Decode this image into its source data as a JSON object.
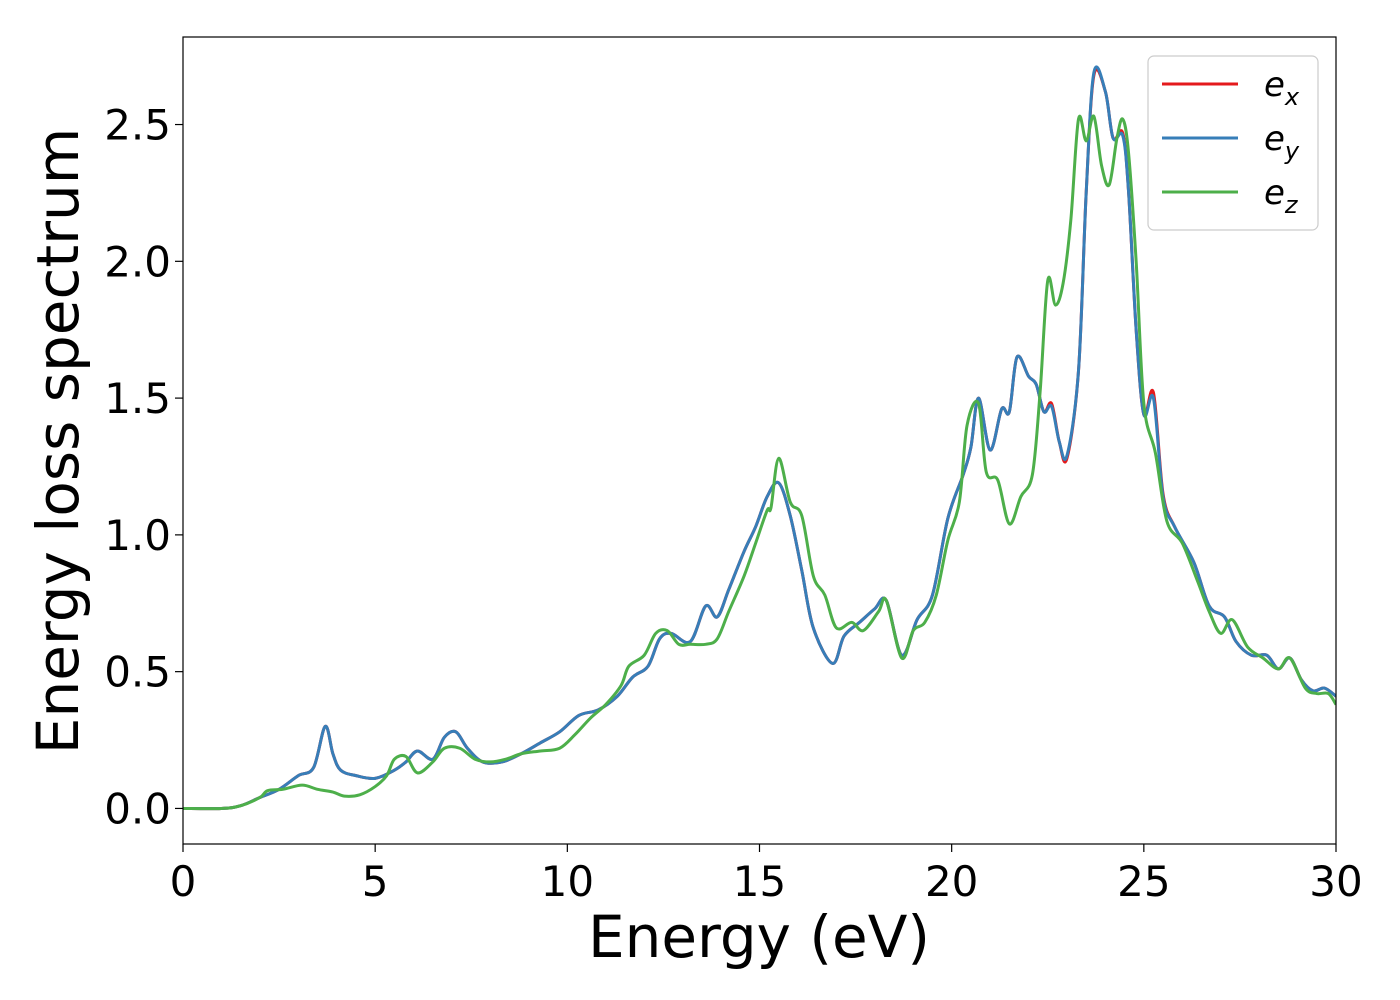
{
  "chart_data": {
    "type": "line",
    "title": "",
    "xlabel": "Energy (eV)",
    "ylabel": "Energy loss spectrum",
    "xlim": [
      0,
      30
    ],
    "ylim": [
      -0.13,
      2.82
    ],
    "xticks": [
      0,
      5,
      10,
      15,
      20,
      25,
      30
    ],
    "xtick_labels": [
      "0",
      "5",
      "10",
      "15",
      "20",
      "25",
      "30"
    ],
    "yticks": [
      0.0,
      0.5,
      1.0,
      1.5,
      2.0,
      2.5
    ],
    "ytick_labels": [
      "0.0",
      "0.5",
      "1.0",
      "1.5",
      "2.0",
      "2.5"
    ],
    "grid": false,
    "legend_position": "top-right",
    "series": [
      {
        "name": "e_x",
        "legend_main": "e",
        "legend_sub": "x",
        "color": "#e41a1c",
        "points": [
          [
            0,
            0
          ],
          [
            1,
            0
          ],
          [
            1.5,
            0.01
          ],
          [
            2,
            0.04
          ],
          [
            2.5,
            0.07
          ],
          [
            3,
            0.12
          ],
          [
            3.4,
            0.15
          ],
          [
            3.7,
            0.3
          ],
          [
            3.9,
            0.2
          ],
          [
            4.1,
            0.14
          ],
          [
            4.5,
            0.12
          ],
          [
            5,
            0.11
          ],
          [
            5.5,
            0.14
          ],
          [
            5.8,
            0.17
          ],
          [
            6.1,
            0.21
          ],
          [
            6.5,
            0.18
          ],
          [
            6.8,
            0.26
          ],
          [
            7.1,
            0.28
          ],
          [
            7.4,
            0.22
          ],
          [
            7.8,
            0.17
          ],
          [
            8.3,
            0.17
          ],
          [
            8.8,
            0.2
          ],
          [
            9.3,
            0.24
          ],
          [
            9.8,
            0.28
          ],
          [
            10.3,
            0.34
          ],
          [
            10.8,
            0.36
          ],
          [
            11.3,
            0.41
          ],
          [
            11.7,
            0.48
          ],
          [
            12.1,
            0.52
          ],
          [
            12.4,
            0.62
          ],
          [
            12.7,
            0.64
          ],
          [
            13.2,
            0.61
          ],
          [
            13.6,
            0.74
          ],
          [
            13.9,
            0.7
          ],
          [
            14.2,
            0.8
          ],
          [
            14.6,
            0.94
          ],
          [
            14.9,
            1.03
          ],
          [
            15.2,
            1.14
          ],
          [
            15.5,
            1.19
          ],
          [
            15.8,
            1.07
          ],
          [
            16.1,
            0.87
          ],
          [
            16.4,
            0.66
          ],
          [
            16.9,
            0.53
          ],
          [
            17.2,
            0.63
          ],
          [
            17.6,
            0.68
          ],
          [
            18.0,
            0.73
          ],
          [
            18.3,
            0.76
          ],
          [
            18.7,
            0.56
          ],
          [
            19.1,
            0.69
          ],
          [
            19.5,
            0.78
          ],
          [
            19.9,
            1.06
          ],
          [
            20.3,
            1.22
          ],
          [
            20.5,
            1.32
          ],
          [
            20.7,
            1.5
          ],
          [
            21.0,
            1.31
          ],
          [
            21.3,
            1.46
          ],
          [
            21.5,
            1.45
          ],
          [
            21.7,
            1.65
          ],
          [
            22.0,
            1.58
          ],
          [
            22.2,
            1.55
          ],
          [
            22.4,
            1.45
          ],
          [
            22.6,
            1.48
          ],
          [
            22.8,
            1.34
          ],
          [
            23.0,
            1.28
          ],
          [
            23.3,
            1.6
          ],
          [
            23.5,
            2.25
          ],
          [
            23.7,
            2.68
          ],
          [
            24.0,
            2.62
          ],
          [
            24.2,
            2.45
          ],
          [
            24.45,
            2.47
          ],
          [
            24.6,
            2.26
          ],
          [
            24.8,
            1.75
          ],
          [
            25.0,
            1.44
          ],
          [
            25.25,
            1.52
          ],
          [
            25.5,
            1.15
          ],
          [
            25.8,
            1.03
          ],
          [
            26.3,
            0.9
          ],
          [
            26.7,
            0.74
          ],
          [
            27.1,
            0.7
          ],
          [
            27.4,
            0.61
          ],
          [
            27.8,
            0.56
          ],
          [
            28.2,
            0.56
          ],
          [
            28.5,
            0.51
          ],
          [
            28.8,
            0.55
          ],
          [
            29.1,
            0.47
          ],
          [
            29.4,
            0.43
          ],
          [
            29.7,
            0.44
          ],
          [
            30,
            0.41
          ]
        ]
      },
      {
        "name": "e_y",
        "legend_main": "e",
        "legend_sub": "y",
        "color": "#377eb8",
        "points": [
          [
            0,
            0
          ],
          [
            1,
            0
          ],
          [
            1.5,
            0.01
          ],
          [
            2,
            0.04
          ],
          [
            2.5,
            0.07
          ],
          [
            3,
            0.12
          ],
          [
            3.4,
            0.15
          ],
          [
            3.7,
            0.3
          ],
          [
            3.9,
            0.2
          ],
          [
            4.1,
            0.14
          ],
          [
            4.5,
            0.12
          ],
          [
            5,
            0.11
          ],
          [
            5.5,
            0.14
          ],
          [
            5.8,
            0.17
          ],
          [
            6.1,
            0.21
          ],
          [
            6.5,
            0.18
          ],
          [
            6.8,
            0.26
          ],
          [
            7.1,
            0.28
          ],
          [
            7.4,
            0.22
          ],
          [
            7.8,
            0.17
          ],
          [
            8.3,
            0.17
          ],
          [
            8.8,
            0.2
          ],
          [
            9.3,
            0.24
          ],
          [
            9.8,
            0.28
          ],
          [
            10.3,
            0.34
          ],
          [
            10.8,
            0.36
          ],
          [
            11.3,
            0.41
          ],
          [
            11.7,
            0.48
          ],
          [
            12.1,
            0.52
          ],
          [
            12.4,
            0.62
          ],
          [
            12.7,
            0.64
          ],
          [
            13.2,
            0.61
          ],
          [
            13.6,
            0.74
          ],
          [
            13.9,
            0.7
          ],
          [
            14.2,
            0.8
          ],
          [
            14.6,
            0.94
          ],
          [
            14.9,
            1.03
          ],
          [
            15.2,
            1.14
          ],
          [
            15.5,
            1.19
          ],
          [
            15.8,
            1.07
          ],
          [
            16.1,
            0.87
          ],
          [
            16.4,
            0.66
          ],
          [
            16.9,
            0.53
          ],
          [
            17.2,
            0.63
          ],
          [
            17.6,
            0.68
          ],
          [
            18.0,
            0.73
          ],
          [
            18.3,
            0.76
          ],
          [
            18.7,
            0.56
          ],
          [
            19.1,
            0.69
          ],
          [
            19.5,
            0.78
          ],
          [
            19.9,
            1.06
          ],
          [
            20.3,
            1.22
          ],
          [
            20.5,
            1.32
          ],
          [
            20.7,
            1.5
          ],
          [
            21.0,
            1.31
          ],
          [
            21.3,
            1.46
          ],
          [
            21.5,
            1.45
          ],
          [
            21.7,
            1.65
          ],
          [
            22.0,
            1.58
          ],
          [
            22.2,
            1.55
          ],
          [
            22.4,
            1.45
          ],
          [
            22.6,
            1.47
          ],
          [
            22.8,
            1.34
          ],
          [
            23.0,
            1.29
          ],
          [
            23.3,
            1.6
          ],
          [
            23.5,
            2.25
          ],
          [
            23.7,
            2.69
          ],
          [
            24.0,
            2.62
          ],
          [
            24.2,
            2.45
          ],
          [
            24.45,
            2.46
          ],
          [
            24.6,
            2.26
          ],
          [
            24.8,
            1.75
          ],
          [
            25.0,
            1.44
          ],
          [
            25.25,
            1.5
          ],
          [
            25.5,
            1.14
          ],
          [
            25.8,
            1.03
          ],
          [
            26.3,
            0.9
          ],
          [
            26.7,
            0.74
          ],
          [
            27.1,
            0.7
          ],
          [
            27.4,
            0.61
          ],
          [
            27.8,
            0.56
          ],
          [
            28.2,
            0.56
          ],
          [
            28.5,
            0.51
          ],
          [
            28.8,
            0.55
          ],
          [
            29.1,
            0.47
          ],
          [
            29.4,
            0.43
          ],
          [
            29.7,
            0.44
          ],
          [
            30,
            0.41
          ]
        ]
      },
      {
        "name": "e_z",
        "legend_main": "e",
        "legend_sub": "z",
        "color": "#4daf4a",
        "points": [
          [
            0,
            0
          ],
          [
            1,
            0
          ],
          [
            1.5,
            0.01
          ],
          [
            2,
            0.04
          ],
          [
            2.2,
            0.065
          ],
          [
            2.6,
            0.07
          ],
          [
            3.1,
            0.085
          ],
          [
            3.5,
            0.07
          ],
          [
            3.9,
            0.06
          ],
          [
            4.2,
            0.045
          ],
          [
            4.6,
            0.05
          ],
          [
            5,
            0.08
          ],
          [
            5.3,
            0.12
          ],
          [
            5.5,
            0.18
          ],
          [
            5.8,
            0.19
          ],
          [
            6.1,
            0.13
          ],
          [
            6.5,
            0.17
          ],
          [
            6.8,
            0.22
          ],
          [
            7.2,
            0.22
          ],
          [
            7.6,
            0.18
          ],
          [
            8.0,
            0.17
          ],
          [
            8.4,
            0.18
          ],
          [
            8.8,
            0.2
          ],
          [
            9.3,
            0.21
          ],
          [
            9.8,
            0.22
          ],
          [
            10.2,
            0.27
          ],
          [
            10.6,
            0.33
          ],
          [
            11.0,
            0.38
          ],
          [
            11.4,
            0.45
          ],
          [
            11.6,
            0.52
          ],
          [
            12.0,
            0.56
          ],
          [
            12.3,
            0.64
          ],
          [
            12.6,
            0.65
          ],
          [
            12.9,
            0.6
          ],
          [
            13.2,
            0.6
          ],
          [
            13.6,
            0.6
          ],
          [
            13.9,
            0.62
          ],
          [
            14.2,
            0.72
          ],
          [
            14.6,
            0.85
          ],
          [
            14.9,
            0.97
          ],
          [
            15.2,
            1.09
          ],
          [
            15.3,
            1.1
          ],
          [
            15.5,
            1.28
          ],
          [
            15.8,
            1.12
          ],
          [
            16.1,
            1.07
          ],
          [
            16.4,
            0.85
          ],
          [
            16.7,
            0.78
          ],
          [
            17.0,
            0.66
          ],
          [
            17.4,
            0.68
          ],
          [
            17.7,
            0.65
          ],
          [
            18.1,
            0.72
          ],
          [
            18.3,
            0.76
          ],
          [
            18.7,
            0.55
          ],
          [
            19.0,
            0.65
          ],
          [
            19.3,
            0.68
          ],
          [
            19.6,
            0.78
          ],
          [
            19.9,
            0.98
          ],
          [
            20.2,
            1.12
          ],
          [
            20.4,
            1.4
          ],
          [
            20.7,
            1.48
          ],
          [
            20.9,
            1.23
          ],
          [
            21.2,
            1.2
          ],
          [
            21.5,
            1.04
          ],
          [
            21.8,
            1.14
          ],
          [
            22.1,
            1.22
          ],
          [
            22.3,
            1.52
          ],
          [
            22.5,
            1.93
          ],
          [
            22.7,
            1.84
          ],
          [
            22.9,
            1.92
          ],
          [
            23.1,
            2.15
          ],
          [
            23.3,
            2.52
          ],
          [
            23.5,
            2.44
          ],
          [
            23.7,
            2.53
          ],
          [
            23.9,
            2.35
          ],
          [
            24.1,
            2.28
          ],
          [
            24.3,
            2.45
          ],
          [
            24.45,
            2.52
          ],
          [
            24.6,
            2.4
          ],
          [
            24.8,
            2.0
          ],
          [
            25.0,
            1.48
          ],
          [
            25.3,
            1.3
          ],
          [
            25.6,
            1.05
          ],
          [
            26.0,
            0.97
          ],
          [
            26.4,
            0.83
          ],
          [
            26.7,
            0.72
          ],
          [
            27.0,
            0.64
          ],
          [
            27.3,
            0.69
          ],
          [
            27.7,
            0.59
          ],
          [
            28.1,
            0.55
          ],
          [
            28.5,
            0.51
          ],
          [
            28.8,
            0.55
          ],
          [
            29.2,
            0.44
          ],
          [
            29.5,
            0.42
          ],
          [
            29.8,
            0.42
          ],
          [
            30,
            0.38
          ]
        ]
      }
    ]
  }
}
